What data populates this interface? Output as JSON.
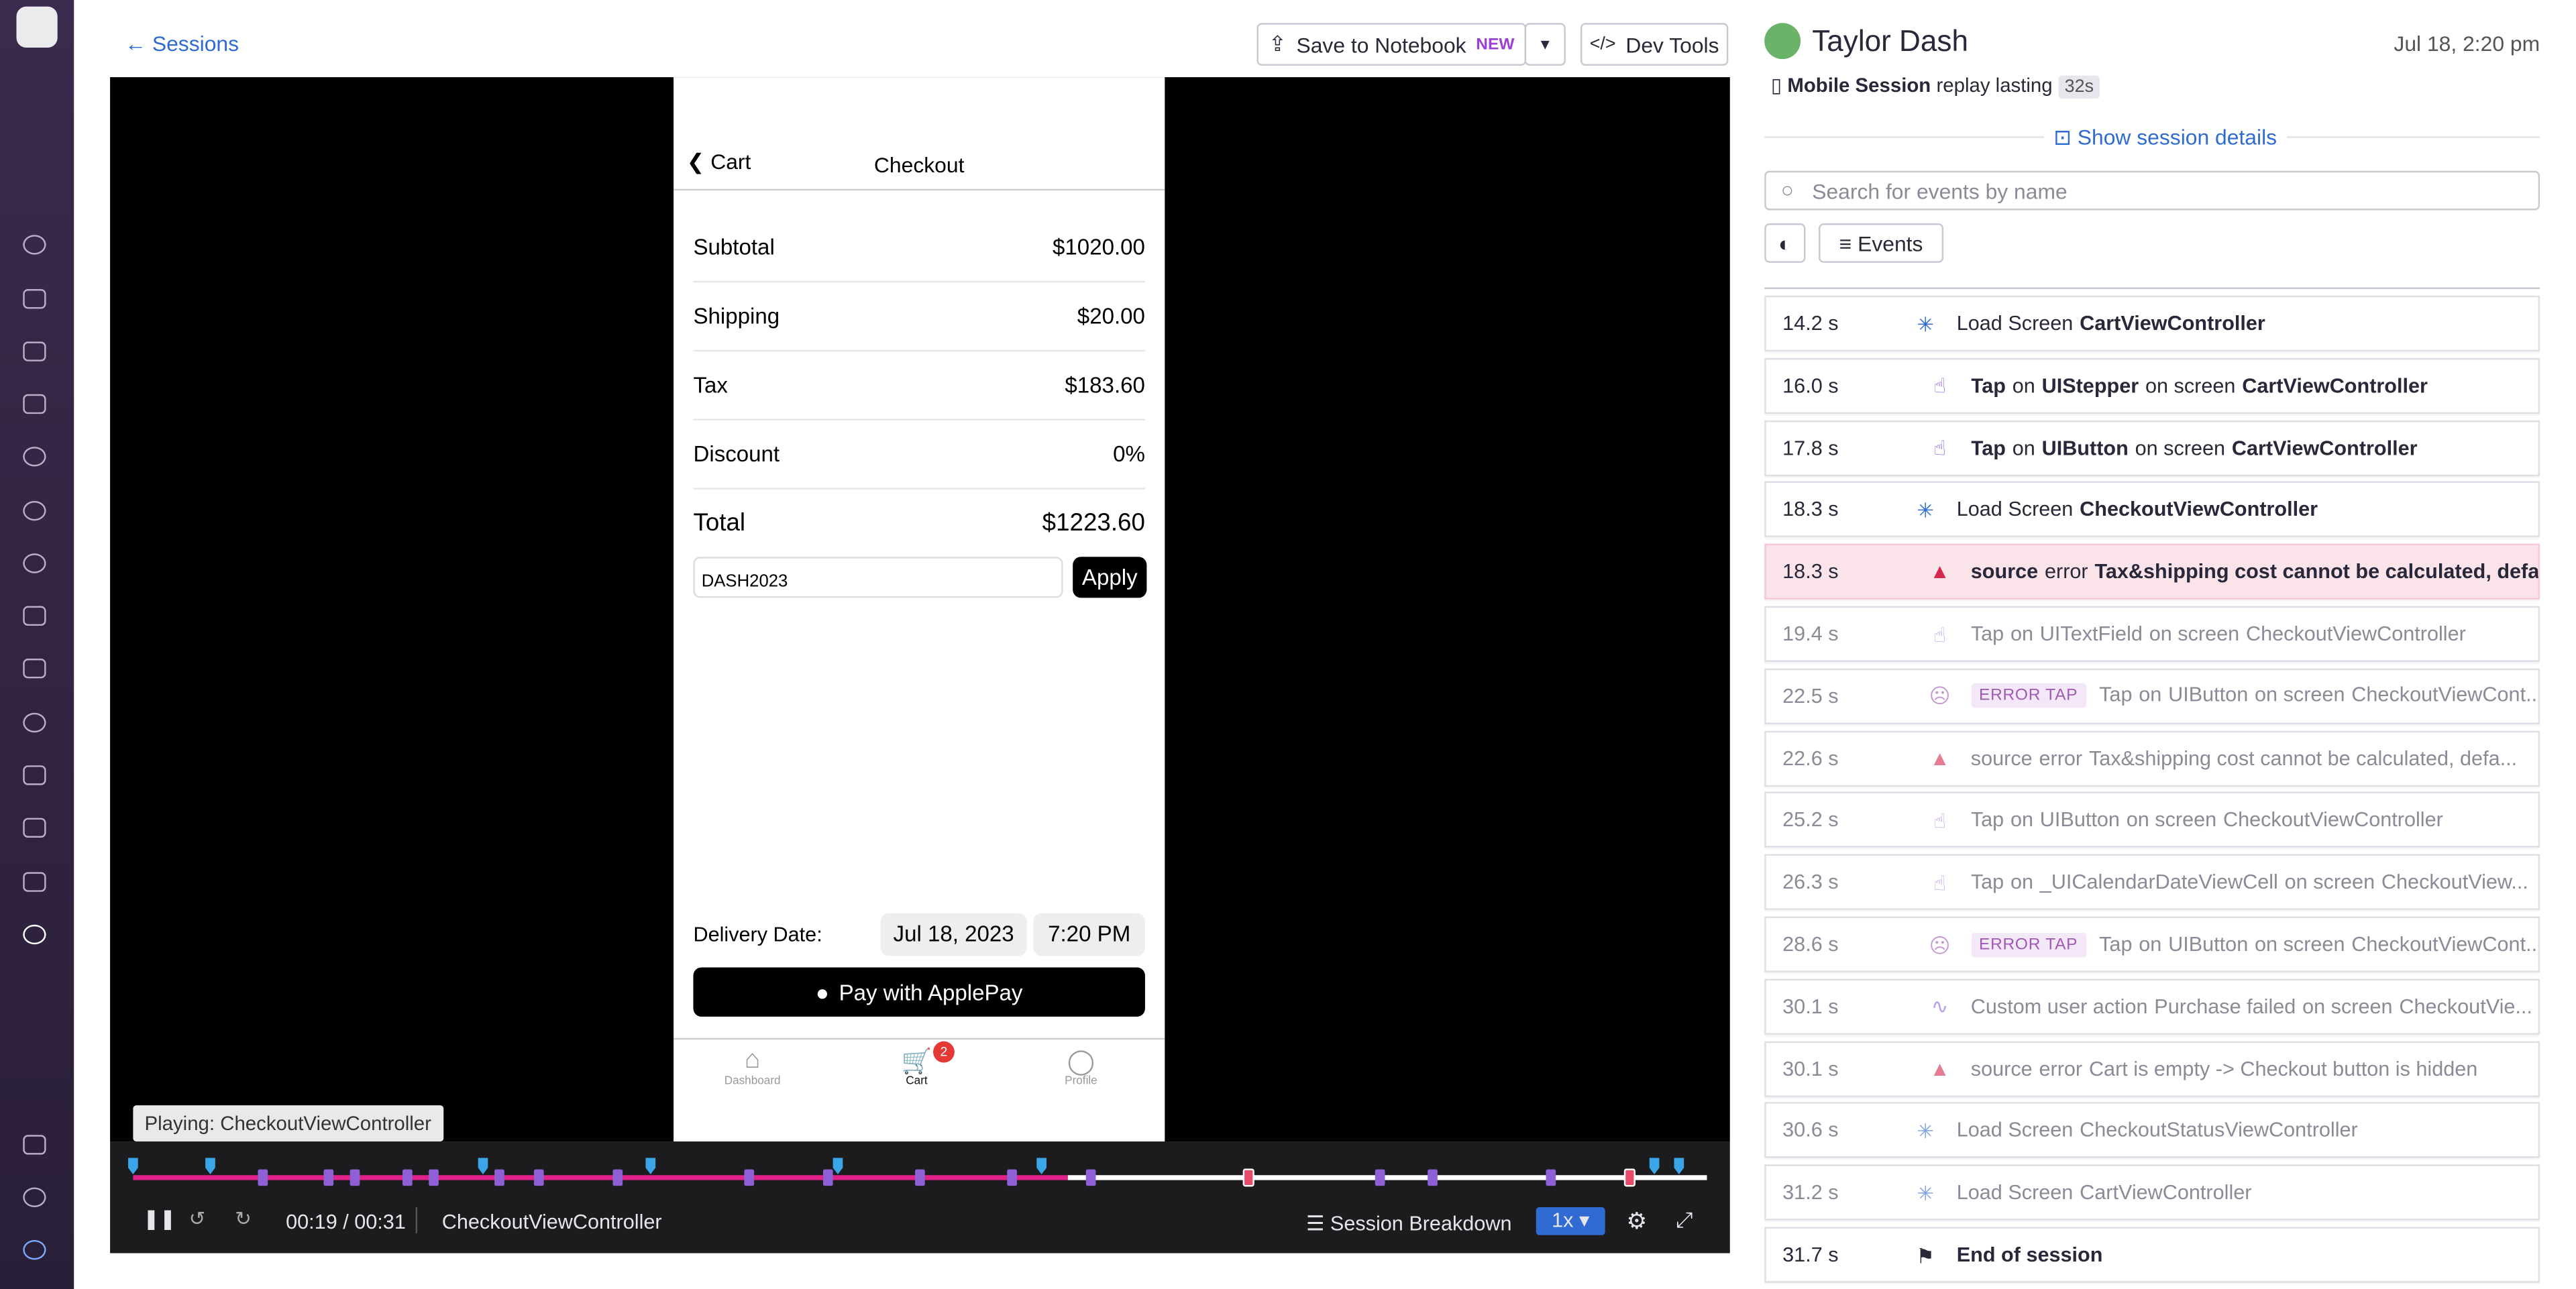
{
  "header": {
    "back": "Sessions",
    "save": "Save to Notebook",
    "save_badge": "NEW",
    "dev_tools": "Dev Tools"
  },
  "phone": {
    "back": "Cart",
    "title": "Checkout",
    "rows": [
      {
        "label": "Subtotal",
        "value": "$1020.00"
      },
      {
        "label": "Shipping",
        "value": "$20.00"
      },
      {
        "label": "Tax",
        "value": "$183.60"
      },
      {
        "label": "Discount",
        "value": "0%"
      },
      {
        "label": "Total",
        "value": "$1223.60"
      }
    ],
    "promo": "DASH2023",
    "apply": "Apply",
    "delivery_label": "Delivery Date:",
    "delivery_date": "Jul 18, 2023",
    "delivery_time": "7:20 PM",
    "pay": "Pay with ApplePay",
    "tabs": [
      "Dashboard",
      "Cart",
      "Profile"
    ],
    "cart_badge": "2"
  },
  "player": {
    "tooltip": "Playing: CheckoutViewController",
    "time": "00:19 / 00:31",
    "view": "CheckoutViewController",
    "breakdown": "Session Breakdown",
    "speed": "1x"
  },
  "sidebar": {
    "user": "Taylor Dash",
    "date": "Jul 18, 2:20 pm",
    "session_type": "Mobile Session",
    "replay": "replay lasting",
    "duration": "32s",
    "details": "Show session details",
    "search": "Search for events by name",
    "events_button": "Events",
    "events": [
      {
        "time": "14.2 s",
        "icon": "load",
        "parts": [
          {
            "text": "Load Screen"
          },
          {
            "text": "CartViewController",
            "bold": true
          }
        ]
      },
      {
        "time": "16.0 s",
        "icon": "tap",
        "parts": [
          {
            "text": "Tap",
            "bold": true
          },
          {
            "text": "on"
          },
          {
            "text": "UIStepper",
            "bold": true
          },
          {
            "text": "on screen"
          },
          {
            "text": "CartViewController",
            "bold": true
          }
        ]
      },
      {
        "time": "17.8 s",
        "icon": "tap",
        "parts": [
          {
            "text": "Tap",
            "bold": true
          },
          {
            "text": "on"
          },
          {
            "text": "UIButton",
            "bold": true
          },
          {
            "text": "on screen"
          },
          {
            "text": "CartViewController",
            "bold": true
          }
        ]
      },
      {
        "time": "18.3 s",
        "icon": "load",
        "parts": [
          {
            "text": "Load Screen"
          },
          {
            "text": "CheckoutViewController",
            "bold": true
          }
        ]
      },
      {
        "time": "18.3 s",
        "icon": "error",
        "highlight": true,
        "parts": [
          {
            "text": "source",
            "bold": true
          },
          {
            "text": "error"
          },
          {
            "text": "Tax&shipping cost cannot be calculated, defa...",
            "bold": true
          }
        ]
      },
      {
        "time": "19.4 s",
        "icon": "tap",
        "dim": true,
        "parts": [
          {
            "text": "Tap"
          },
          {
            "text": "on"
          },
          {
            "text": "UITextField"
          },
          {
            "text": "on screen"
          },
          {
            "text": "CheckoutViewController"
          }
        ]
      },
      {
        "time": "22.5 s",
        "icon": "frustration",
        "dim": true,
        "badge": "ERROR TAP",
        "parts": [
          {
            "text": "Tap"
          },
          {
            "text": "on"
          },
          {
            "text": "UIButton"
          },
          {
            "text": "on screen"
          },
          {
            "text": "CheckoutViewCont..."
          }
        ]
      },
      {
        "time": "22.6 s",
        "icon": "error",
        "dim": true,
        "parts": [
          {
            "text": "source"
          },
          {
            "text": "error"
          },
          {
            "text": "Tax&shipping cost cannot be calculated, defa..."
          }
        ]
      },
      {
        "time": "25.2 s",
        "icon": "tap",
        "dim": true,
        "parts": [
          {
            "text": "Tap"
          },
          {
            "text": "on"
          },
          {
            "text": "UIButton"
          },
          {
            "text": "on screen"
          },
          {
            "text": "CheckoutViewController"
          }
        ]
      },
      {
        "time": "26.3 s",
        "icon": "tap",
        "dim": true,
        "parts": [
          {
            "text": "Tap"
          },
          {
            "text": "on"
          },
          {
            "text": "_UICalendarDateViewCell"
          },
          {
            "text": "on screen"
          },
          {
            "text": "CheckoutView..."
          }
        ]
      },
      {
        "time": "28.6 s",
        "icon": "frustration",
        "dim": true,
        "badge": "ERROR TAP",
        "parts": [
          {
            "text": "Tap"
          },
          {
            "text": "on"
          },
          {
            "text": "UIButton"
          },
          {
            "text": "on screen"
          },
          {
            "text": "CheckoutViewCont..."
          }
        ]
      },
      {
        "time": "30.1 s",
        "icon": "custom",
        "dim": true,
        "parts": [
          {
            "text": "Custom user action"
          },
          {
            "text": "Purchase failed"
          },
          {
            "text": "on screen"
          },
          {
            "text": "CheckoutVie..."
          }
        ]
      },
      {
        "time": "30.1 s",
        "icon": "error",
        "dim": true,
        "parts": [
          {
            "text": "source"
          },
          {
            "text": "error"
          },
          {
            "text": "Cart is empty -> Checkout button is hidden"
          }
        ]
      },
      {
        "time": "30.6 s",
        "icon": "load",
        "dim": true,
        "parts": [
          {
            "text": "Load Screen"
          },
          {
            "text": "CheckoutStatusViewController"
          }
        ]
      },
      {
        "time": "31.2 s",
        "icon": "load",
        "dim": true,
        "parts": [
          {
            "text": "Load Screen"
          },
          {
            "text": "CartViewController"
          }
        ]
      },
      {
        "time": "31.7 s",
        "icon": "end",
        "parts": [
          {
            "text": "End of session",
            "bold": true
          }
        ]
      }
    ]
  }
}
